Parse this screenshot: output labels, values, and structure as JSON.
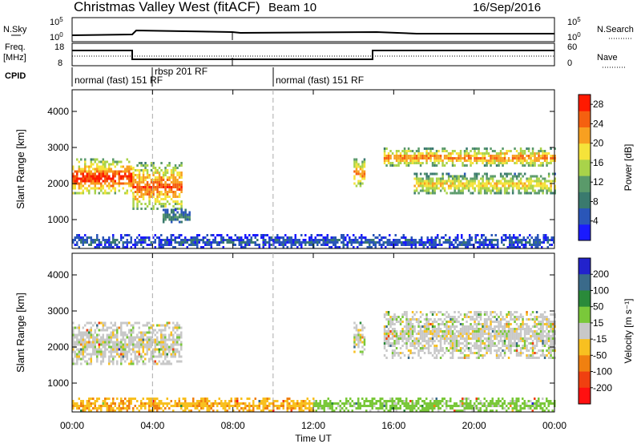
{
  "header": {
    "station": "Christmas Valley West (fitACF)",
    "beam": "Beam 10",
    "date": "16/Sep/2016"
  },
  "strip_labels": {
    "nsky": "N.Sky",
    "nsearch": "N.Search",
    "freq": "Freq.",
    "freq_unit": "[MHz]",
    "nave": "Nave",
    "cpid": "CPID",
    "log_ticks": [
      "10^5",
      "10^0"
    ],
    "freq_ticks": [
      "18",
      "8"
    ],
    "nave_ticks": [
      "60",
      "0"
    ]
  },
  "cpid_segments": [
    {
      "label": "normal (fast) 151 RF",
      "start_hour": 0.0
    },
    {
      "label": "rbsp 201 RF",
      "start_hour": 4.0
    },
    {
      "label": "normal (fast) 151 RF",
      "start_hour": 10.0
    }
  ],
  "chart_data": [
    {
      "type": "heatmap",
      "title": "Power",
      "ylabel": "Slant Range [km]",
      "xlabel": "Time UT",
      "x_ticks": [
        "00:00",
        "04:00",
        "08:00",
        "12:00",
        "16:00",
        "20:00",
        "00:00"
      ],
      "xlim_hours": [
        0,
        24
      ],
      "y_ticks": [
        1000,
        2000,
        3000,
        4000
      ],
      "ylim": [
        200,
        4600
      ],
      "colorbar": {
        "label": "Power [dB]",
        "ticks": [
          4,
          8,
          12,
          16,
          20,
          24,
          28
        ],
        "range": [
          0,
          30
        ],
        "colors": [
          "#1a1aff",
          "#2a56b8",
          "#3a7a6e",
          "#5a9a6a",
          "#a9d34a",
          "#f5e33a",
          "#f8a020",
          "#f56010",
          "#ff1a00"
        ]
      },
      "echo_regions": [
        {
          "t0": 0.0,
          "t1": 3.0,
          "r0": 1700,
          "r1": 2700,
          "level": 28
        },
        {
          "t0": 3.0,
          "t1": 5.4,
          "r0": 1300,
          "r1": 2600,
          "level": 26
        },
        {
          "t0": 4.5,
          "t1": 5.8,
          "r0": 900,
          "r1": 1300,
          "level": 10
        },
        {
          "t0": 14.0,
          "t1": 14.5,
          "r0": 1900,
          "r1": 2700,
          "level": 24
        },
        {
          "t0": 15.5,
          "t1": 24.0,
          "r0": 2500,
          "r1": 3000,
          "level": 24
        },
        {
          "t0": 17.0,
          "t1": 24.0,
          "r0": 1700,
          "r1": 2300,
          "level": 20
        },
        {
          "t0": 0.0,
          "t1": 24.0,
          "r0": 250,
          "r1": 600,
          "level": 6
        }
      ]
    },
    {
      "type": "heatmap",
      "title": "Velocity",
      "ylabel": "Slant Range [km]",
      "xlabel": "Time UT",
      "x_ticks": [
        "00:00",
        "04:00",
        "08:00",
        "12:00",
        "16:00",
        "20:00",
        "00:00"
      ],
      "xlim_hours": [
        0,
        24
      ],
      "y_ticks": [
        1000,
        2000,
        3000,
        4000
      ],
      "ylim": [
        200,
        4600
      ],
      "colorbar": {
        "label": "Velocity [m s^-1]",
        "ticks": [
          200,
          100,
          50,
          15,
          -15,
          -50,
          -100,
          -200
        ],
        "colors": [
          "#2222cc",
          "#3a6a8a",
          "#2a8a3a",
          "#7ac83a",
          "#c8c8c8",
          "#f8c020",
          "#f08010",
          "#f04010",
          "#ff1010"
        ]
      },
      "echo_regions": [
        {
          "t0": 0.0,
          "t1": 5.4,
          "r0": 1500,
          "r1": 2700,
          "velocity": 0
        },
        {
          "t0": 14.0,
          "t1": 14.5,
          "r0": 1800,
          "r1": 2700,
          "velocity": 0
        },
        {
          "t0": 15.5,
          "t1": 24.0,
          "r0": 1700,
          "r1": 3000,
          "velocity": 0
        },
        {
          "t0": 0.0,
          "t1": 12.0,
          "r0": 250,
          "r1": 600,
          "velocity": -40
        },
        {
          "t0": 12.0,
          "t1": 24.0,
          "r0": 250,
          "r1": 600,
          "velocity": 30
        }
      ]
    }
  ]
}
